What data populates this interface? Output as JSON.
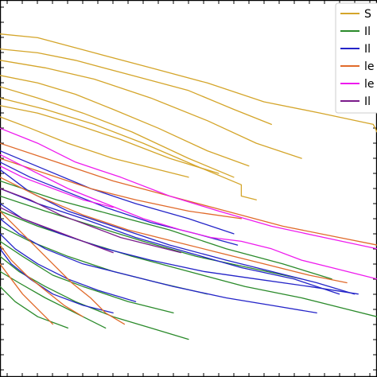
{
  "chart_data": {
    "type": "line",
    "title": "",
    "xlabel": "",
    "ylabel": "",
    "xlim": [
      0,
      100
    ],
    "ylim": [
      0,
      100
    ],
    "grid": false,
    "legend_position": "top-right",
    "series": [
      {
        "name": "S",
        "color": "#d4a52a",
        "lines": [
          [
            [
              0,
              91
            ],
            [
              10,
              90
            ],
            [
              25,
              86
            ],
            [
              40,
              82
            ],
            [
              55,
              78
            ],
            [
              70,
              73
            ],
            [
              85,
              70
            ],
            [
              99,
              67
            ],
            [
              100,
              65
            ]
          ],
          [
            [
              0,
              87
            ],
            [
              10,
              86
            ],
            [
              20,
              84
            ],
            [
              35,
              80
            ],
            [
              50,
              76
            ],
            [
              62,
              71
            ],
            [
              72,
              67
            ]
          ],
          [
            [
              0,
              84
            ],
            [
              12,
              82
            ],
            [
              25,
              79
            ],
            [
              40,
              74
            ],
            [
              55,
              68
            ],
            [
              68,
              62
            ],
            [
              80,
              58
            ]
          ],
          [
            [
              0,
              80
            ],
            [
              10,
              78
            ],
            [
              20,
              75
            ],
            [
              30,
              71
            ],
            [
              42,
              66
            ],
            [
              55,
              60
            ],
            [
              66,
              56
            ]
          ],
          [
            [
              0,
              77
            ],
            [
              10,
              74
            ],
            [
              22,
              70
            ],
            [
              35,
              65
            ],
            [
              50,
              58
            ],
            [
              62,
              53
            ]
          ],
          [
            [
              0,
              74
            ],
            [
              12,
              71
            ],
            [
              25,
              67
            ],
            [
              38,
              62
            ],
            [
              52,
              56
            ],
            [
              64,
              51
            ],
            [
              64,
              48
            ],
            [
              68,
              47
            ]
          ],
          [
            [
              0,
              72
            ],
            [
              10,
              70
            ],
            [
              20,
              67
            ],
            [
              32,
              63
            ],
            [
              45,
              58
            ],
            [
              58,
              54
            ]
          ],
          [
            [
              0,
              69
            ],
            [
              8,
              66
            ],
            [
              18,
              62
            ],
            [
              30,
              58
            ],
            [
              42,
              55
            ],
            [
              50,
              53
            ]
          ]
        ]
      },
      {
        "name": "Il",
        "color": "#2a8a2a",
        "lines": [
          [
            [
              0,
              44
            ],
            [
              10,
              40
            ],
            [
              22,
              36
            ],
            [
              35,
              32
            ],
            [
              50,
              28
            ],
            [
              65,
              24
            ],
            [
              80,
              21
            ],
            [
              92,
              18
            ],
            [
              100,
              16
            ]
          ],
          [
            [
              0,
              40
            ],
            [
              8,
              36
            ],
            [
              18,
              32
            ],
            [
              30,
              28
            ],
            [
              42,
              25
            ],
            [
              55,
              22
            ]
          ],
          [
            [
              0,
              36
            ],
            [
              6,
              32
            ],
            [
              14,
              27
            ],
            [
              22,
              24
            ],
            [
              34,
              20
            ],
            [
              46,
              17
            ]
          ],
          [
            [
              0,
              32
            ],
            [
              5,
              28
            ],
            [
              12,
              24
            ],
            [
              20,
              20
            ],
            [
              30,
              16
            ],
            [
              40,
              13
            ],
            [
              50,
              10
            ]
          ],
          [
            [
              0,
              28
            ],
            [
              5,
              25
            ],
            [
              12,
              21
            ],
            [
              20,
              17
            ],
            [
              28,
              13
            ]
          ],
          [
            [
              0,
              24
            ],
            [
              4,
              20
            ],
            [
              10,
              16
            ],
            [
              18,
              13
            ]
          ],
          [
            [
              0,
              52
            ],
            [
              15,
              47
            ],
            [
              30,
              43
            ],
            [
              45,
              39
            ],
            [
              60,
              34
            ],
            [
              75,
              30
            ],
            [
              88,
              26
            ]
          ],
          [
            [
              0,
              48
            ],
            [
              12,
              44
            ],
            [
              25,
              40
            ],
            [
              38,
              36
            ],
            [
              52,
              32
            ],
            [
              66,
              29
            ],
            [
              80,
              26
            ]
          ]
        ]
      },
      {
        "name": "Il",
        "color": "#2424c8",
        "lines": [
          [
            [
              0,
              55
            ],
            [
              8,
              49
            ],
            [
              18,
              44
            ],
            [
              30,
              40
            ],
            [
              45,
              35
            ],
            [
              60,
              31
            ],
            [
              72,
              28
            ],
            [
              84,
              25
            ],
            [
              94,
              22
            ]
          ],
          [
            [
              0,
              50
            ],
            [
              10,
              46
            ],
            [
              22,
              42
            ],
            [
              36,
              37
            ],
            [
              50,
              33
            ],
            [
              64,
              29
            ],
            [
              78,
              26
            ],
            [
              90,
              22
            ]
          ],
          [
            [
              0,
              46
            ],
            [
              6,
              42
            ],
            [
              16,
              38
            ],
            [
              28,
              34
            ],
            [
              40,
              31
            ],
            [
              54,
              28
            ],
            [
              68,
              26
            ],
            [
              82,
              24
            ],
            [
              95,
              22
            ]
          ],
          [
            [
              0,
              42
            ],
            [
              5,
              38
            ],
            [
              12,
              34
            ],
            [
              22,
              30
            ],
            [
              34,
              27
            ],
            [
              46,
              24
            ],
            [
              60,
              21
            ],
            [
              72,
              19
            ],
            [
              84,
              17
            ]
          ],
          [
            [
              0,
              60
            ],
            [
              12,
              55
            ],
            [
              24,
              50
            ],
            [
              36,
              46
            ],
            [
              50,
              42
            ],
            [
              62,
              38
            ]
          ],
          [
            [
              0,
              57
            ],
            [
              8,
              53
            ],
            [
              18,
              49
            ],
            [
              28,
              45
            ],
            [
              40,
              41
            ],
            [
              52,
              38
            ],
            [
              63,
              35
            ]
          ],
          [
            [
              0,
              38
            ],
            [
              4,
              34
            ],
            [
              10,
              30
            ],
            [
              18,
              26
            ],
            [
              26,
              23
            ],
            [
              36,
              20
            ]
          ],
          [
            [
              0,
              34
            ],
            [
              3,
              30
            ],
            [
              8,
              26
            ],
            [
              14,
              22
            ],
            [
              22,
              19
            ],
            [
              30,
              17
            ]
          ]
        ]
      },
      {
        "name": "le",
        "color": "#e06a2a",
        "lines": [
          [
            [
              0,
              62
            ],
            [
              15,
              57
            ],
            [
              30,
              52
            ],
            [
              45,
              48
            ],
            [
              60,
              44
            ],
            [
              75,
              40
            ],
            [
              90,
              37
            ],
            [
              100,
              35
            ]
          ],
          [
            [
              0,
              58
            ],
            [
              12,
              54
            ],
            [
              24,
              50
            ],
            [
              36,
              47
            ],
            [
              50,
              44
            ],
            [
              64,
              42
            ]
          ],
          [
            [
              0,
              53
            ],
            [
              10,
              48
            ],
            [
              22,
              43
            ],
            [
              34,
              39
            ],
            [
              46,
              36
            ],
            [
              58,
              33
            ],
            [
              70,
              30
            ],
            [
              82,
              27
            ],
            [
              92,
              25
            ]
          ],
          [
            [
              0,
              44
            ],
            [
              4,
              40
            ],
            [
              9,
              35
            ],
            [
              14,
              30
            ],
            [
              19,
              25
            ],
            [
              24,
              21
            ],
            [
              28,
              17
            ],
            [
              33,
              14
            ]
          ],
          [
            [
              0,
              35
            ],
            [
              3,
              31
            ],
            [
              7,
              27
            ],
            [
              12,
              23
            ],
            [
              17,
              19
            ],
            [
              22,
              16
            ]
          ],
          [
            [
              0,
              30
            ],
            [
              3,
              26
            ],
            [
              6,
              22
            ],
            [
              10,
              18
            ],
            [
              14,
              14
            ]
          ]
        ]
      },
      {
        "name": "le",
        "color": "#ee1aee",
        "lines": [
          [
            [
              0,
              66
            ],
            [
              10,
              62
            ],
            [
              20,
              57
            ],
            [
              32,
              53
            ],
            [
              45,
              48
            ],
            [
              58,
              44
            ],
            [
              72,
              40
            ],
            [
              86,
              37
            ],
            [
              100,
              34
            ]
          ],
          [
            [
              0,
              59
            ],
            [
              8,
              55
            ],
            [
              18,
              50
            ],
            [
              28,
              46
            ],
            [
              38,
              42
            ],
            [
              48,
              39
            ],
            [
              56,
              37
            ],
            [
              64,
              36
            ],
            [
              72,
              34
            ],
            [
              80,
              31
            ],
            [
              88,
              29
            ],
            [
              96,
              27
            ],
            [
              100,
              26
            ]
          ],
          [
            [
              0,
              56
            ],
            [
              6,
              53
            ],
            [
              14,
              50
            ],
            [
              22,
              47
            ],
            [
              30,
              45
            ]
          ]
        ]
      },
      {
        "name": "Il",
        "color": "#7a1a8a",
        "lines": [
          [
            [
              0,
              50
            ],
            [
              8,
              47
            ],
            [
              16,
              43
            ],
            [
              24,
              40
            ],
            [
              32,
              37
            ],
            [
              40,
              35
            ],
            [
              48,
              33
            ]
          ],
          [
            [
              0,
              45
            ],
            [
              6,
              42
            ],
            [
              14,
              39
            ],
            [
              22,
              36
            ],
            [
              30,
              33
            ]
          ]
        ]
      }
    ]
  }
}
